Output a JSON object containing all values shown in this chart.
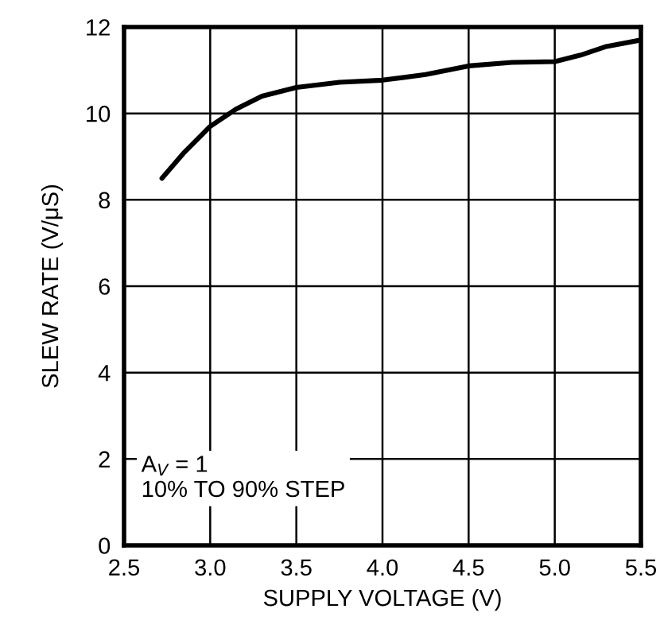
{
  "chart_data": {
    "type": "line",
    "xlabel": "SUPPLY VOLTAGE (V)",
    "ylabel": "SLEW RATE (V/μS)",
    "x": [
      2.72,
      2.85,
      3.0,
      3.15,
      3.3,
      3.5,
      3.75,
      4.0,
      4.25,
      4.5,
      4.75,
      5.0,
      5.15,
      5.3,
      5.5
    ],
    "series": [
      {
        "color": "#000000",
        "values": [
          8.5,
          9.1,
          9.7,
          10.1,
          10.4,
          10.6,
          10.72,
          10.77,
          10.9,
          11.1,
          11.18,
          11.2,
          11.35,
          11.55,
          11.7
        ]
      }
    ],
    "xlim": [
      2.5,
      5.5
    ],
    "ylim": [
      0,
      12
    ],
    "xticks": [
      2.5,
      {
        "value": 3,
        "label": "3.0"
      },
      3.5,
      {
        "value": 4,
        "label": "4.0"
      },
      4.5,
      {
        "value": 5,
        "label": "5.0"
      },
      5.5
    ],
    "yticks": [
      0,
      2,
      4,
      6,
      8,
      10,
      12
    ],
    "grid": true,
    "legend": false,
    "marker": "none",
    "line_style": "solid",
    "annotations": [
      "A$_{V}$ = 1\n10% TO 90% STEP"
    ]
  }
}
